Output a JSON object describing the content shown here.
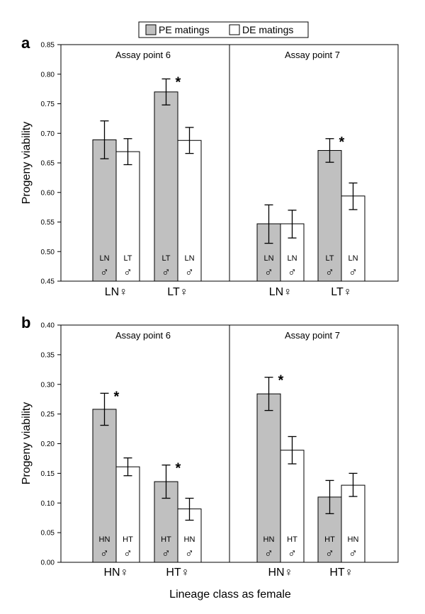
{
  "chart_data": [
    {
      "type": "bar",
      "panel_label": "a",
      "ylabel": "Progeny viability",
      "ylim": [
        0.45,
        0.85
      ],
      "yticks": [
        "0.45",
        "0.50",
        "0.55",
        "0.60",
        "0.65",
        "0.70",
        "0.75",
        "0.80",
        "0.85"
      ],
      "subpanels": [
        {
          "title": "Assay point 6",
          "groups": [
            {
              "label": "LN♀",
              "bars": [
                {
                  "series": "PE",
                  "value": 0.689,
                  "err_low": 0.657,
                  "err_high": 0.721,
                  "male_code": "LN",
                  "male_symbol": "♂",
                  "significant": false
                },
                {
                  "series": "DE",
                  "value": 0.669,
                  "err_low": 0.647,
                  "err_high": 0.691,
                  "male_code": "LT",
                  "male_symbol": "♂",
                  "significant": false
                }
              ]
            },
            {
              "label": "LT♀",
              "bars": [
                {
                  "series": "PE",
                  "value": 0.77,
                  "err_low": 0.748,
                  "err_high": 0.792,
                  "male_code": "LT",
                  "male_symbol": "♂",
                  "significant": true
                },
                {
                  "series": "DE",
                  "value": 0.688,
                  "err_low": 0.666,
                  "err_high": 0.71,
                  "male_code": "LN",
                  "male_symbol": "♂",
                  "significant": false
                }
              ]
            }
          ]
        },
        {
          "title": "Assay point 7",
          "groups": [
            {
              "label": "LN♀",
              "bars": [
                {
                  "series": "PE",
                  "value": 0.547,
                  "err_low": 0.514,
                  "err_high": 0.579,
                  "male_code": "LN",
                  "male_symbol": "♂",
                  "significant": false
                },
                {
                  "series": "DE",
                  "value": 0.547,
                  "err_low": 0.523,
                  "err_high": 0.57,
                  "male_code": "LN",
                  "male_symbol": "♂",
                  "significant": false
                }
              ]
            },
            {
              "label": "LT♀",
              "bars": [
                {
                  "series": "PE",
                  "value": 0.671,
                  "err_low": 0.651,
                  "err_high": 0.691,
                  "male_code": "LT",
                  "male_symbol": "♂",
                  "significant": true
                },
                {
                  "series": "DE",
                  "value": 0.594,
                  "err_low": 0.571,
                  "err_high": 0.616,
                  "male_code": "LN",
                  "male_symbol": "♂",
                  "significant": false
                }
              ]
            }
          ]
        }
      ]
    },
    {
      "type": "bar",
      "panel_label": "b",
      "ylabel": "Progeny viability",
      "xlabel": "Lineage class as female",
      "ylim": [
        0.0,
        0.4
      ],
      "yticks": [
        "0.00",
        "0.05",
        "0.10",
        "0.15",
        "0.20",
        "0.25",
        "0.30",
        "0.35",
        "0.40"
      ],
      "subpanels": [
        {
          "title": "Assay point 6",
          "groups": [
            {
              "label": "HN♀",
              "bars": [
                {
                  "series": "PE",
                  "value": 0.258,
                  "err_low": 0.231,
                  "err_high": 0.285,
                  "male_code": "HN",
                  "male_symbol": "♂",
                  "significant": true
                },
                {
                  "series": "DE",
                  "value": 0.161,
                  "err_low": 0.146,
                  "err_high": 0.176,
                  "male_code": "HT",
                  "male_symbol": "♂",
                  "significant": false
                }
              ]
            },
            {
              "label": "HT♀",
              "bars": [
                {
                  "series": "PE",
                  "value": 0.136,
                  "err_low": 0.108,
                  "err_high": 0.164,
                  "male_code": "HT",
                  "male_symbol": "♂",
                  "significant": true
                },
                {
                  "series": "DE",
                  "value": 0.09,
                  "err_low": 0.071,
                  "err_high": 0.108,
                  "male_code": "HN",
                  "male_symbol": "♂",
                  "significant": false
                }
              ]
            }
          ]
        },
        {
          "title": "Assay point 7",
          "groups": [
            {
              "label": "HN♀",
              "bars": [
                {
                  "series": "PE",
                  "value": 0.284,
                  "err_low": 0.256,
                  "err_high": 0.312,
                  "male_code": "HN",
                  "male_symbol": "♂",
                  "significant": true
                },
                {
                  "series": "DE",
                  "value": 0.189,
                  "err_low": 0.166,
                  "err_high": 0.212,
                  "male_code": "HT",
                  "male_symbol": "♂",
                  "significant": false
                }
              ]
            },
            {
              "label": "HT♀",
              "bars": [
                {
                  "series": "PE",
                  "value": 0.11,
                  "err_low": 0.082,
                  "err_high": 0.138,
                  "male_code": "HT",
                  "male_symbol": "♂",
                  "significant": false
                },
                {
                  "series": "DE",
                  "value": 0.13,
                  "err_low": 0.111,
                  "err_high": 0.15,
                  "male_code": "HN",
                  "male_symbol": "♂",
                  "significant": false
                }
              ]
            }
          ]
        }
      ]
    }
  ],
  "legend": {
    "items": [
      {
        "key": "PE",
        "label": "PE matings",
        "color": "#c0c0c0"
      },
      {
        "key": "DE",
        "label": "DE matings",
        "color": "#ffffff"
      }
    ]
  },
  "significance_marker": "*",
  "colors": {
    "PE": "#c0c0c0",
    "DE": "#ffffff",
    "stroke": "#000000"
  }
}
